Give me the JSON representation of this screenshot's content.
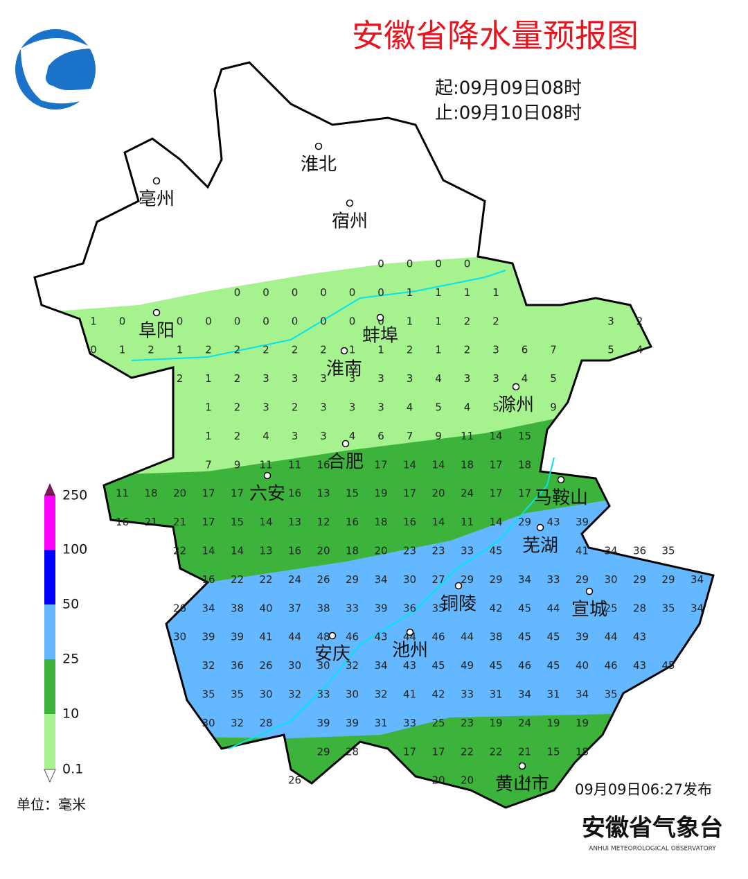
{
  "header": {
    "title": "安徽省降水量预报图",
    "start": "起:09月09日08时",
    "end": "止:09月10日08时"
  },
  "cities": [
    {
      "name": "淮北"
    },
    {
      "name": "亳州"
    },
    {
      "name": "宿州"
    },
    {
      "name": "阜阳"
    },
    {
      "name": "蚌埠"
    },
    {
      "name": "淮南"
    },
    {
      "name": "滁州"
    },
    {
      "name": "合肥"
    },
    {
      "name": "六安"
    },
    {
      "name": "马鞍山"
    },
    {
      "name": "芜湖"
    },
    {
      "name": "铜陵"
    },
    {
      "name": "宣城"
    },
    {
      "name": "安庆"
    },
    {
      "name": "池州"
    },
    {
      "name": "黄山市"
    }
  ],
  "grid": {
    "rows": [
      [
        null,
        null,
        null,
        null,
        null,
        null,
        null,
        null,
        null,
        null,
        0,
        0,
        0,
        0,
        null,
        null,
        null,
        null,
        null,
        null,
        null,
        null
      ],
      [
        null,
        null,
        null,
        null,
        null,
        0,
        0,
        0,
        0,
        0,
        0,
        1,
        1,
        1,
        1,
        null,
        null,
        null,
        null,
        null,
        null,
        null
      ],
      [
        1,
        0,
        null,
        0,
        0,
        0,
        0,
        0,
        0,
        0,
        0,
        1,
        1,
        2,
        2,
        null,
        null,
        null,
        3,
        2,
        null,
        null
      ],
      [
        0,
        1,
        2,
        1,
        2,
        2,
        2,
        2,
        2,
        1,
        1,
        2,
        1,
        2,
        3,
        6,
        7,
        null,
        5,
        4,
        null,
        null
      ],
      [
        null,
        null,
        null,
        2,
        1,
        2,
        3,
        3,
        3,
        3,
        3,
        3,
        4,
        3,
        3,
        4,
        5,
        null,
        null,
        null,
        null,
        null
      ],
      [
        null,
        null,
        null,
        null,
        1,
        2,
        3,
        2,
        3,
        3,
        3,
        4,
        5,
        4,
        5,
        null,
        9,
        null,
        null,
        null,
        null,
        null
      ],
      [
        null,
        null,
        null,
        null,
        1,
        2,
        4,
        3,
        3,
        4,
        6,
        7,
        9,
        11,
        14,
        15,
        null,
        null,
        null,
        null,
        null,
        null
      ],
      [
        null,
        null,
        null,
        null,
        7,
        9,
        11,
        11,
        16,
        null,
        17,
        14,
        14,
        18,
        17,
        18,
        null,
        null,
        null,
        null,
        null,
        null
      ],
      [
        null,
        11,
        18,
        20,
        17,
        17,
        null,
        16,
        13,
        15,
        19,
        17,
        20,
        24,
        17,
        17,
        null,
        null,
        null,
        null,
        null,
        null
      ],
      [
        null,
        16,
        21,
        21,
        17,
        15,
        14,
        13,
        12,
        16,
        18,
        16,
        14,
        11,
        14,
        29,
        43,
        39,
        null,
        null,
        null,
        null
      ],
      [
        null,
        null,
        null,
        22,
        14,
        14,
        13,
        16,
        20,
        18,
        20,
        23,
        23,
        33,
        45,
        null,
        null,
        41,
        34,
        36,
        35,
        null
      ],
      [
        null,
        null,
        null,
        null,
        16,
        22,
        22,
        24,
        26,
        29,
        34,
        30,
        27,
        29,
        29,
        34,
        33,
        29,
        30,
        29,
        29,
        34
      ],
      [
        null,
        null,
        null,
        26,
        34,
        38,
        40,
        37,
        38,
        33,
        39,
        36,
        35,
        null,
        42,
        45,
        44,
        null,
        25,
        28,
        35,
        34
      ],
      [
        null,
        null,
        null,
        30,
        39,
        39,
        41,
        44,
        48,
        46,
        43,
        44,
        46,
        44,
        38,
        45,
        45,
        39,
        44,
        43,
        null,
        null
      ],
      [
        null,
        null,
        null,
        null,
        32,
        36,
        26,
        30,
        30,
        32,
        34,
        43,
        45,
        49,
        45,
        46,
        45,
        40,
        46,
        43,
        45,
        null
      ],
      [
        null,
        null,
        null,
        null,
        35,
        35,
        30,
        32,
        33,
        30,
        32,
        41,
        42,
        33,
        31,
        34,
        31,
        34,
        35,
        null,
        null,
        null
      ],
      [
        null,
        null,
        null,
        null,
        30,
        32,
        28,
        null,
        39,
        39,
        31,
        33,
        25,
        23,
        19,
        24,
        19,
        19,
        null,
        null,
        null,
        null
      ],
      [
        null,
        null,
        null,
        null,
        null,
        null,
        null,
        null,
        29,
        28,
        null,
        17,
        17,
        22,
        22,
        21,
        15,
        18,
        null,
        null,
        null,
        null
      ],
      [
        null,
        null,
        null,
        null,
        null,
        null,
        null,
        26,
        null,
        null,
        null,
        null,
        20,
        20,
        null,
        24,
        null,
        null,
        null,
        null,
        null,
        null
      ]
    ]
  },
  "legend": {
    "labels": [
      "250",
      "100",
      "50",
      "25",
      "10",
      "0.1"
    ],
    "unit": "单位：毫米"
  },
  "footer": {
    "issued": "09月09日06:27发布",
    "org": "安徽省气象台",
    "org_en": "ANHUI METEOROLOGICAL OBSERVATORY"
  }
}
